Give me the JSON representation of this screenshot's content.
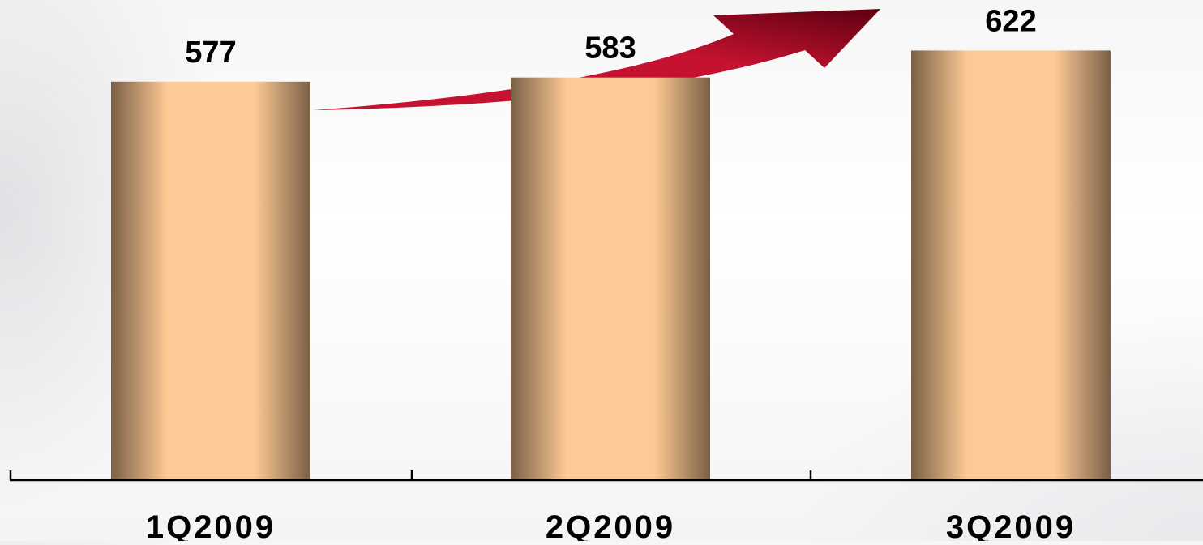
{
  "chart_data": {
    "type": "bar",
    "categories": [
      "1Q2009",
      "2Q2009",
      "3Q2009"
    ],
    "values": [
      577,
      583,
      622
    ],
    "data_labels": [
      "577",
      "583",
      "622"
    ],
    "title": "",
    "xlabel": "",
    "ylabel": "",
    "ylim": [
      0,
      660
    ],
    "grid": false,
    "legend": "none",
    "trend_arrow": "up",
    "colors": {
      "bar_edge": "#7a6046",
      "bar_center": "#fdc994",
      "arrow_dark": "#5c0010",
      "arrow_light": "#c41230",
      "axis": "#000000"
    }
  }
}
